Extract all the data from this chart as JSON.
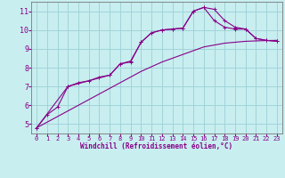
{
  "xlabel": "Windchill (Refroidissement éolien,°C)",
  "xlim": [
    -0.5,
    23.5
  ],
  "ylim": [
    4.5,
    11.5
  ],
  "yticks": [
    5,
    6,
    7,
    8,
    9,
    10,
    11
  ],
  "xticks": [
    0,
    1,
    2,
    3,
    4,
    5,
    6,
    7,
    8,
    9,
    10,
    11,
    12,
    13,
    14,
    15,
    16,
    17,
    18,
    19,
    20,
    21,
    22,
    23
  ],
  "bg_color": "#c8eef0",
  "grid_color": "#a0d4d8",
  "line_color": "#880088",
  "line1_x": [
    0,
    1,
    2,
    3,
    4,
    5,
    6,
    7,
    8,
    9,
    10,
    11,
    12,
    13,
    14,
    15,
    16,
    17,
    18,
    19,
    20,
    21,
    22,
    23
  ],
  "line1_y": [
    4.8,
    5.5,
    5.9,
    7.0,
    7.2,
    7.3,
    7.5,
    7.6,
    8.2,
    8.3,
    9.35,
    9.85,
    10.0,
    10.05,
    10.1,
    11.0,
    11.2,
    11.1,
    10.5,
    10.15,
    10.05,
    9.55,
    9.45,
    9.4
  ],
  "line2_x": [
    0,
    1,
    2,
    3,
    4,
    5,
    6,
    7,
    8,
    9,
    10,
    11,
    12,
    13,
    14,
    15,
    16,
    17,
    18,
    19,
    20,
    21,
    22,
    23
  ],
  "line2_y": [
    4.8,
    5.1,
    5.4,
    5.7,
    6.0,
    6.3,
    6.6,
    6.9,
    7.2,
    7.5,
    7.8,
    8.05,
    8.3,
    8.5,
    8.7,
    8.9,
    9.1,
    9.2,
    9.3,
    9.35,
    9.4,
    9.42,
    9.44,
    9.45
  ],
  "line3_x": [
    0,
    3,
    7,
    8,
    9,
    10,
    11,
    12,
    13,
    14,
    15,
    16,
    17,
    18,
    19,
    20,
    21,
    22,
    23
  ],
  "line3_y": [
    4.8,
    7.0,
    7.6,
    8.2,
    8.35,
    9.35,
    9.85,
    10.0,
    10.05,
    10.1,
    11.0,
    11.2,
    10.5,
    10.15,
    10.05,
    10.05,
    9.55,
    9.45,
    9.4
  ]
}
